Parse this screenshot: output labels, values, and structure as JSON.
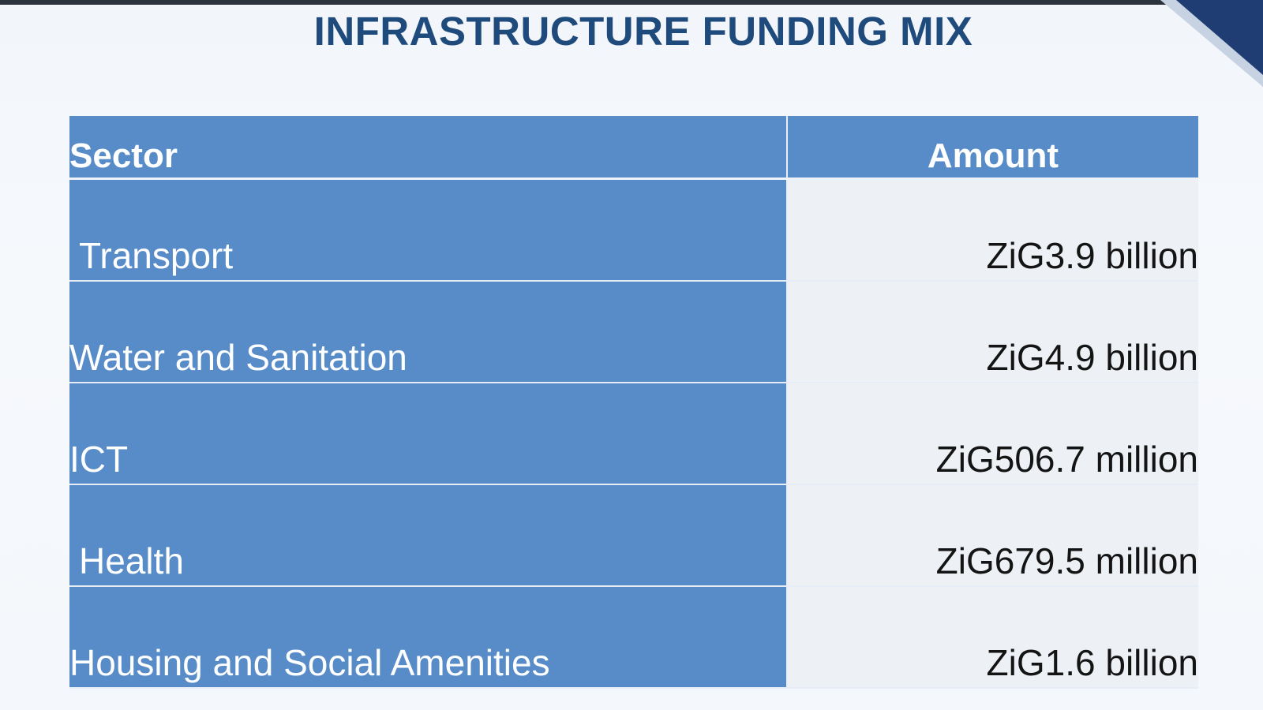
{
  "slide": {
    "title": "INFRASTRUCTURE FUNDING MIX"
  },
  "table": {
    "headers": {
      "sector": "Sector",
      "amount": "Amount"
    },
    "rows": [
      {
        "sector": "Transport",
        "amount": "ZiG3.9 billion"
      },
      {
        "sector": "Water and Sanitation",
        "amount": "ZiG4.9 billion"
      },
      {
        "sector": "ICT",
        "amount": "ZiG506.7 million"
      },
      {
        "sector": "Health",
        "amount": "ZiG679.5 million"
      },
      {
        "sector": "Housing and Social Amenities",
        "amount": "ZiG1.6 billion"
      }
    ]
  },
  "colors": {
    "title": "#1f4a7c",
    "header_fill": "#578cc8",
    "sector_fill": "#578cc8",
    "amount_fill": "#edf0f5",
    "background": "#f4f7fb"
  }
}
